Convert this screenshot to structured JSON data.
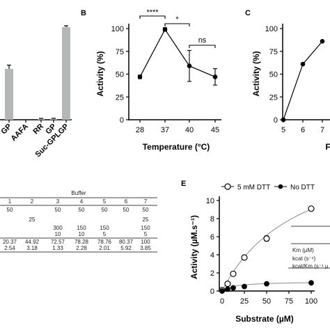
{
  "panels": {
    "A": {
      "categories": [
        "GP",
        "AAFA",
        "RR",
        "GP",
        "Suc-GPLGP"
      ],
      "tick_labels": [
        "GP",
        "AAFA",
        "RR",
        "GP",
        "Suc-GPLGP"
      ]
    },
    "B": {
      "letter": "B",
      "xlabel": "Temperature (°C)",
      "ylabel": "Activity (%)",
      "yticks": [
        "100",
        "75",
        "50",
        "25",
        "0"
      ],
      "xticks": [
        "28",
        "37",
        "40",
        "45"
      ],
      "sig1": "****",
      "sig2": "*",
      "sig3": "ns"
    },
    "C": {
      "letter": "C",
      "ylabel": "Activity (%)",
      "yticks": [
        "100",
        "75",
        "50",
        "25",
        "0"
      ],
      "xticks": [
        "5",
        "6",
        "7"
      ],
      "xlabel_fragment": "F"
    },
    "D": {
      "header": "Buffer",
      "columns": [
        "1",
        "2",
        "3",
        "4",
        "5",
        "6",
        "7"
      ],
      "rows": [
        [
          "50",
          "",
          "50",
          "50",
          "50",
          "50",
          "50"
        ],
        [
          "",
          "25",
          "",
          "",
          "",
          "",
          "25"
        ],
        [
          "",
          "",
          "300",
          "150",
          "150",
          "",
          "150"
        ],
        [
          "",
          "",
          "10",
          "10",
          "5",
          "",
          "5"
        ],
        [
          "20.37",
          "44.92",
          "72.57",
          "78.28",
          "78.76",
          "80.37",
          "100"
        ],
        [
          "2.54",
          "3.18",
          "1.33",
          "2.28",
          "2.01",
          "5.92",
          "3.85"
        ]
      ]
    },
    "E": {
      "letter": "E",
      "legend": [
        "5 mM DTT",
        "No DTT"
      ],
      "xlabel": "Substrate (µM)",
      "ylabel": "Activity (µM.s⁻¹)",
      "yticks": [
        "10",
        "8",
        "6",
        "4",
        "2",
        "0"
      ],
      "xticks": [
        "0",
        "25",
        "50",
        "75",
        "100"
      ],
      "table_fragment": [
        "Km (µM)",
        "kcat (s⁻¹)",
        "kcat/Km (s⁻¹ µ"
      ]
    }
  },
  "chart_data": [
    {
      "type": "bar",
      "panel": "A",
      "categories": [
        "GP",
        "AAFA",
        "RR",
        "GP",
        "Suc-GPLGP"
      ],
      "values": [
        55,
        0,
        1,
        1,
        100
      ],
      "errors": [
        4,
        0,
        0.5,
        0.5,
        1.5
      ],
      "bar_color": "#b3b8b6"
    },
    {
      "type": "line",
      "panel": "B",
      "title": "",
      "xlabel": "Temperature (°C)",
      "ylabel": "Activity (%)",
      "categories": [
        "28",
        "37",
        "40",
        "45"
      ],
      "values": [
        47,
        99,
        59,
        47
      ],
      "errors": [
        2,
        2,
        17,
        9
      ],
      "ylim": [
        0,
        100
      ]
    },
    {
      "type": "line",
      "panel": "C",
      "ylabel": "Activity (%)",
      "x": [
        5,
        6,
        7
      ],
      "values": [
        0,
        61,
        86
      ],
      "ylim": [
        0,
        100
      ]
    },
    {
      "type": "table",
      "panel": "D",
      "header": "Buffer"
    },
    {
      "type": "scatter",
      "panel": "E",
      "xlabel": "Substrate (µM)",
      "ylabel": "Activity (µM.s⁻¹)",
      "xlim": [
        0,
        100
      ],
      "ylim": [
        0,
        10
      ],
      "series": [
        {
          "name": "5 mM DTT",
          "marker": "open-circle",
          "x": [
            0,
            6.25,
            12.5,
            25,
            50,
            100
          ],
          "y": [
            0.1,
            0.8,
            1.9,
            3.7,
            5.8,
            9.1
          ],
          "errors": [
            0,
            0,
            0,
            0,
            0.3,
            0
          ]
        },
        {
          "name": "No DTT",
          "marker": "filled-circle",
          "x": [
            0,
            6.25,
            12.5,
            25,
            50,
            100
          ],
          "y": [
            0,
            0.2,
            0.35,
            0.5,
            0.8,
            0.9
          ],
          "errors": [
            0,
            0,
            0,
            0,
            0,
            0
          ]
        }
      ]
    }
  ]
}
